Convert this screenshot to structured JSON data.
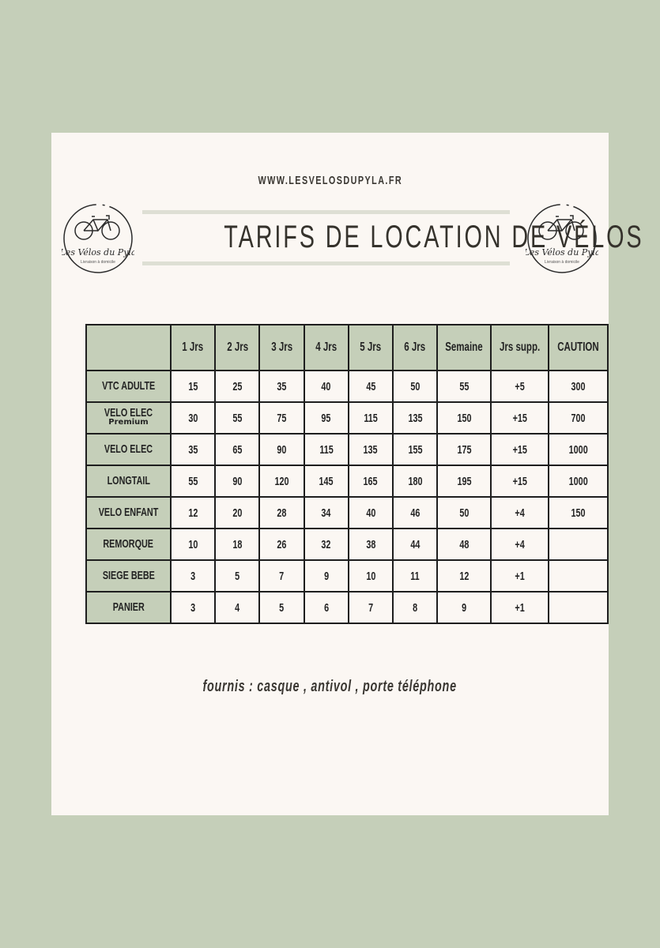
{
  "website": "WWW.LESVELOSDUPYLA.FR",
  "title": "TARIFS DE LOCATION DE VÉLOS",
  "logo": {
    "brand": "Les Vélos du Pyla",
    "tagline": "Livraison à domicile",
    "icon": "bicycle-icon"
  },
  "table": {
    "headers": [
      "",
      "1 Jrs",
      "2 Jrs",
      "3 Jrs",
      "4 Jrs",
      "5 Jrs",
      "6 Jrs",
      "Semaine",
      "Jrs supp.",
      "CAUTION"
    ],
    "rows": [
      {
        "label": "VTC ADULTE",
        "sub": "",
        "values": [
          "15",
          "25",
          "35",
          "40",
          "45",
          "50",
          "55",
          "+5",
          "300"
        ]
      },
      {
        "label": "VELO ELEC",
        "sub": "Premium",
        "values": [
          "30",
          "55",
          "75",
          "95",
          "115",
          "135",
          "150",
          "+15",
          "700"
        ]
      },
      {
        "label": "VELO ELEC",
        "sub": "",
        "values": [
          "35",
          "65",
          "90",
          "115",
          "135",
          "155",
          "175",
          "+15",
          "1000"
        ]
      },
      {
        "label": "LONGTAIL",
        "sub": "",
        "values": [
          "55",
          "90",
          "120",
          "145",
          "165",
          "180",
          "195",
          "+15",
          "1000"
        ]
      },
      {
        "label": "VELO ENFANT",
        "sub": "",
        "values": [
          "12",
          "20",
          "28",
          "34",
          "40",
          "46",
          "50",
          "+4",
          "150"
        ]
      },
      {
        "label": "REMORQUE",
        "sub": "",
        "values": [
          "10",
          "18",
          "26",
          "32",
          "38",
          "44",
          "48",
          "+4",
          ""
        ]
      },
      {
        "label": "SIEGE BEBE",
        "sub": "",
        "values": [
          "3",
          "5",
          "7",
          "9",
          "10",
          "11",
          "12",
          "+1",
          ""
        ]
      },
      {
        "label": "PANIER",
        "sub": "",
        "values": [
          "3",
          "4",
          "5",
          "6",
          "7",
          "8",
          "9",
          "+1",
          ""
        ]
      }
    ]
  },
  "note": "fournis : casque , antivol , porte téléphone",
  "colors": {
    "background": "#c5cfb9",
    "card": "#fbf7f3",
    "header_cell": "#c5cfb9",
    "text": "#35322c"
  }
}
